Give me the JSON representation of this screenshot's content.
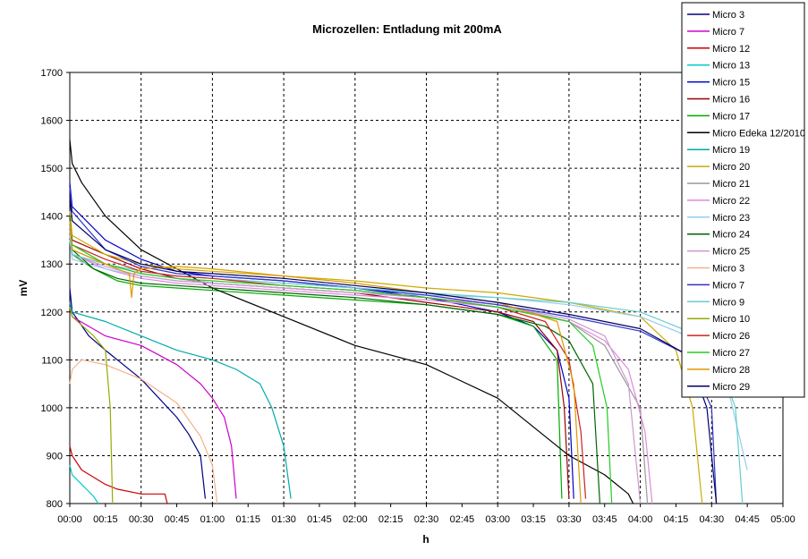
{
  "chart_data": {
    "type": "line",
    "title": "Microzellen: Entladung mit 200mA",
    "xlabel": "h",
    "ylabel": "mV",
    "ylim": [
      800,
      1700
    ],
    "yticks": [
      800,
      900,
      1000,
      1100,
      1200,
      1300,
      1400,
      1500,
      1600,
      1700
    ],
    "xlim_minutes": [
      0,
      300
    ],
    "xticks": [
      "00:00",
      "00:15",
      "00:30",
      "00:45",
      "01:00",
      "01:15",
      "01:30",
      "01:45",
      "02:00",
      "02:15",
      "02:30",
      "02:45",
      "03:00",
      "03:15",
      "03:30",
      "03:45",
      "04:00",
      "04:15",
      "04:30",
      "04:45",
      "05:00"
    ],
    "grid": true,
    "legend_position": "top-right",
    "x_unit": "minutes",
    "series": [
      {
        "name": "Micro 3",
        "color": "#000080",
        "x": [
          0,
          1,
          8,
          15,
          30,
          45,
          50,
          55,
          57
        ],
        "y": [
          1250,
          1200,
          1150,
          1120,
          1060,
          980,
          945,
          900,
          810
        ]
      },
      {
        "name": "Micro 7",
        "color": "#cc00cc",
        "x": [
          0,
          1,
          15,
          30,
          45,
          55,
          60,
          65,
          68,
          70
        ],
        "y": [
          1220,
          1190,
          1150,
          1130,
          1090,
          1050,
          1020,
          980,
          920,
          810
        ]
      },
      {
        "name": "Micro 12",
        "color": "#cc0000",
        "x": [
          0,
          1,
          5,
          15,
          20,
          30,
          40,
          41
        ],
        "y": [
          920,
          900,
          870,
          840,
          830,
          820,
          820,
          800
        ]
      },
      {
        "name": "Micro 13",
        "color": "#00cccc",
        "x": [
          0,
          1,
          5,
          10,
          12
        ],
        "y": [
          880,
          860,
          840,
          815,
          800
        ]
      },
      {
        "name": "Micro 15",
        "color": "#0000cc",
        "x": [
          0,
          1,
          15,
          30,
          45,
          60,
          90,
          120,
          150,
          180,
          195,
          205,
          210,
          212
        ],
        "y": [
          1470,
          1420,
          1350,
          1310,
          1285,
          1275,
          1265,
          1250,
          1230,
          1200,
          1170,
          1120,
          1020,
          810
        ]
      },
      {
        "name": "Micro 16",
        "color": "#990000",
        "x": [
          0,
          1,
          15,
          30,
          45,
          60,
          90,
          120,
          150,
          180,
          195,
          205,
          208,
          210
        ],
        "y": [
          1400,
          1350,
          1320,
          1290,
          1270,
          1260,
          1250,
          1240,
          1220,
          1200,
          1180,
          1120,
          1000,
          810
        ]
      },
      {
        "name": "Micro 17",
        "color": "#00aa00",
        "x": [
          0,
          1,
          10,
          20,
          30,
          45,
          60,
          90,
          120,
          150,
          180,
          195,
          205,
          207
        ],
        "y": [
          1380,
          1320,
          1290,
          1265,
          1255,
          1250,
          1245,
          1235,
          1225,
          1215,
          1195,
          1170,
          1100,
          810
        ]
      },
      {
        "name": "Micro Edeka 12/2010",
        "color": "#000000",
        "x": [
          0,
          1,
          5,
          15,
          30,
          45,
          60,
          90,
          120,
          150,
          180,
          210,
          225,
          235,
          237
        ],
        "y": [
          1560,
          1510,
          1470,
          1400,
          1330,
          1290,
          1250,
          1190,
          1130,
          1090,
          1020,
          900,
          860,
          820,
          800
        ]
      },
      {
        "name": "Micro 19",
        "color": "#00aaaa",
        "x": [
          0,
          1,
          15,
          30,
          45,
          60,
          70,
          80,
          85,
          90,
          93
        ],
        "y": [
          1220,
          1200,
          1180,
          1150,
          1120,
          1100,
          1080,
          1050,
          1000,
          920,
          810
        ]
      },
      {
        "name": "Micro 20",
        "color": "#ccaa00",
        "x": [
          0,
          1,
          15,
          30,
          45,
          60,
          90,
          120,
          150,
          180,
          210,
          240,
          255,
          262,
          266
        ],
        "y": [
          1410,
          1360,
          1320,
          1300,
          1290,
          1285,
          1275,
          1265,
          1250,
          1240,
          1220,
          1190,
          1120,
          1000,
          800
        ]
      },
      {
        "name": "Micro 21",
        "color": "#999999",
        "x": [
          0,
          1,
          15,
          30,
          45,
          60,
          90,
          120,
          150,
          180,
          210,
          225,
          240,
          243
        ],
        "y": [
          1380,
          1330,
          1300,
          1280,
          1270,
          1260,
          1250,
          1240,
          1230,
          1215,
          1180,
          1130,
          1000,
          800
        ]
      },
      {
        "name": "Micro 22",
        "color": "#dd88dd",
        "x": [
          0,
          1,
          15,
          30,
          45,
          60,
          90,
          120,
          150,
          180,
          210,
          225,
          235,
          242,
          245
        ],
        "y": [
          1370,
          1320,
          1290,
          1270,
          1260,
          1255,
          1245,
          1235,
          1225,
          1210,
          1180,
          1140,
          1080,
          950,
          800
        ]
      },
      {
        "name": "Micro 23",
        "color": "#99ccee",
        "x": [
          0,
          1,
          15,
          30,
          45,
          60,
          90,
          120,
          150,
          180,
          210,
          240,
          260,
          275,
          285
        ],
        "y": [
          1350,
          1310,
          1290,
          1275,
          1265,
          1260,
          1250,
          1240,
          1235,
          1230,
          1215,
          1190,
          1150,
          1080,
          870
        ]
      },
      {
        "name": "Micro 24",
        "color": "#006600",
        "x": [
          0,
          1,
          10,
          20,
          30,
          45,
          60,
          90,
          120,
          150,
          180,
          200,
          210,
          220,
          223
        ],
        "y": [
          1400,
          1330,
          1290,
          1270,
          1260,
          1255,
          1250,
          1240,
          1230,
          1215,
          1195,
          1170,
          1140,
          1050,
          800
        ]
      },
      {
        "name": "Micro 25",
        "color": "#cc99cc",
        "x": [
          0,
          1,
          15,
          30,
          45,
          60,
          90,
          120,
          150,
          180,
          210,
          225,
          235,
          240
        ],
        "y": [
          1360,
          1320,
          1295,
          1275,
          1265,
          1260,
          1250,
          1240,
          1230,
          1215,
          1185,
          1150,
          1050,
          800
        ]
      },
      {
        "name": "Micro 3",
        "color": "#f2b28c",
        "x": [
          0,
          1,
          5,
          15,
          30,
          45,
          55,
          60,
          62
        ],
        "y": [
          1050,
          1080,
          1100,
          1090,
          1060,
          1010,
          940,
          880,
          800
        ]
      },
      {
        "name": "Micro 7",
        "color": "#3333cc",
        "x": [
          0,
          1,
          15,
          30,
          45,
          60,
          90,
          120,
          150,
          180,
          210,
          240,
          260,
          270,
          272
        ],
        "y": [
          1460,
          1410,
          1330,
          1295,
          1280,
          1275,
          1265,
          1250,
          1235,
          1215,
          1190,
          1160,
          1110,
          1000,
          800
        ]
      },
      {
        "name": "Micro 9",
        "color": "#66cccc",
        "x": [
          0,
          1,
          15,
          30,
          45,
          60,
          90,
          120,
          150,
          180,
          210,
          240,
          270,
          280,
          283
        ],
        "y": [
          1360,
          1320,
          1300,
          1285,
          1275,
          1270,
          1260,
          1250,
          1240,
          1230,
          1220,
          1200,
          1140,
          1000,
          800
        ]
      },
      {
        "name": "Micro 10",
        "color": "#99aa00",
        "x": [
          0,
          1,
          10,
          15,
          17,
          18
        ],
        "y": [
          1210,
          1190,
          1150,
          1120,
          1000,
          800
        ]
      },
      {
        "name": "Micro 26",
        "color": "#cc2222",
        "x": [
          0,
          1,
          15,
          30,
          45,
          60,
          90,
          120,
          150,
          180,
          200,
          210,
          215,
          217
        ],
        "y": [
          1390,
          1340,
          1310,
          1285,
          1275,
          1270,
          1255,
          1245,
          1230,
          1210,
          1180,
          1100,
          950,
          810
        ]
      },
      {
        "name": "Micro 27",
        "color": "#22cc22",
        "x": [
          0,
          1,
          15,
          30,
          45,
          60,
          90,
          120,
          150,
          180,
          210,
          220,
          226,
          228
        ],
        "y": [
          1390,
          1340,
          1300,
          1280,
          1270,
          1265,
          1255,
          1245,
          1230,
          1210,
          1180,
          1130,
          1000,
          800
        ]
      },
      {
        "name": "Micro 28",
        "color": "#dd9900",
        "x": [
          0,
          1,
          15,
          25,
          26,
          27,
          30,
          45,
          60,
          90,
          120,
          150,
          180,
          205,
          212,
          215
        ],
        "y": [
          1390,
          1330,
          1300,
          1280,
          1230,
          1280,
          1290,
          1295,
          1290,
          1275,
          1260,
          1240,
          1220,
          1180,
          1050,
          800
        ]
      },
      {
        "name": "Micro 29",
        "color": "#000066",
        "x": [
          0,
          1,
          15,
          30,
          45,
          60,
          90,
          120,
          150,
          180,
          210,
          240,
          260,
          268,
          272
        ],
        "y": [
          1440,
          1390,
          1330,
          1300,
          1285,
          1280,
          1270,
          1255,
          1240,
          1220,
          1195,
          1165,
          1110,
          1000,
          800
        ]
      }
    ]
  }
}
